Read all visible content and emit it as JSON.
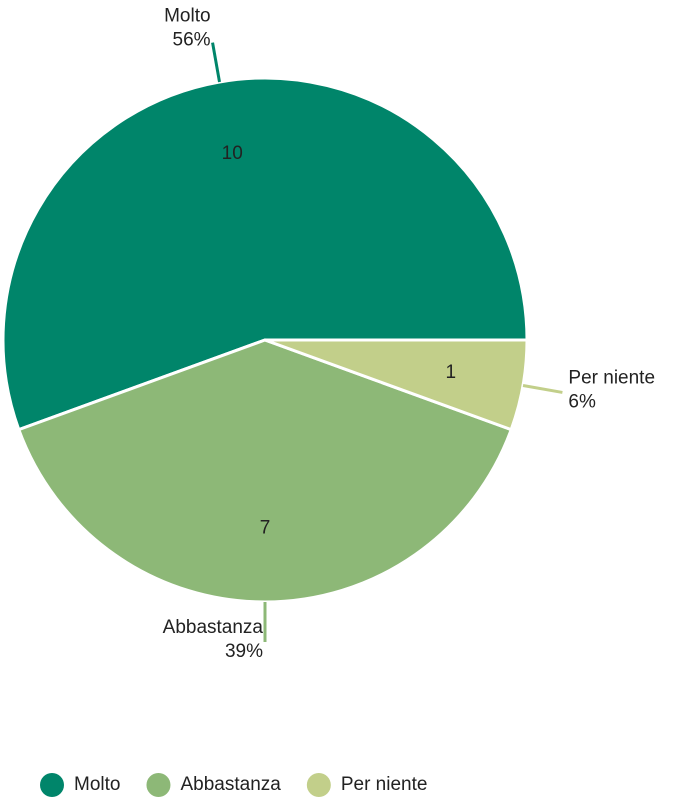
{
  "chart_data": {
    "type": "pie",
    "categories": [
      "Molto",
      "Abbastanza",
      "Per niente"
    ],
    "values": [
      10,
      7,
      1
    ],
    "percent_labels": [
      "56%",
      "39%",
      "6%"
    ],
    "colors": [
      "#00856a",
      "#8db877",
      "#c2cf8a"
    ],
    "legend": "bottom"
  }
}
